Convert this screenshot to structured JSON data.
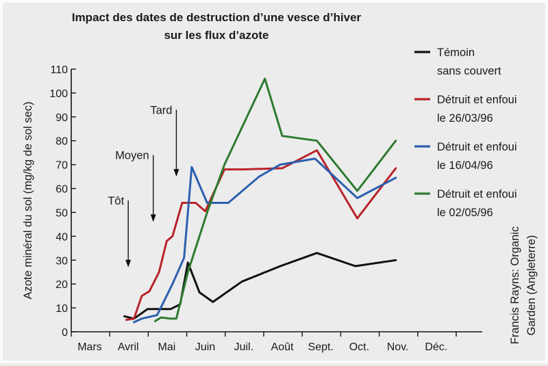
{
  "chart_data": {
    "type": "line",
    "title_line1": "Impact des dates de destruction d’une vesce d’hiver",
    "title_line2": "sur les flux d’azote",
    "ylabel": "Azote minéral du sol (mg/kg de sol sec)",
    "ylim": [
      0,
      110
    ],
    "yticks": [
      0,
      10,
      20,
      30,
      40,
      50,
      60,
      70,
      80,
      90,
      100,
      110
    ],
    "categories": [
      "Mars",
      "Avril",
      "Mai",
      "Juin",
      "Juil.",
      "Août",
      "Sept.",
      "Oct.",
      "Nov.",
      "Déc."
    ],
    "grid": false,
    "legend_position": "right",
    "series": [
      {
        "name": "Témoin sans couvert",
        "legend_lines": [
          "Témoin",
          "sans couvert"
        ],
        "color": "#111111",
        "x": [
          0.9,
          1.15,
          1.5,
          1.75,
          2.1,
          2.35,
          2.55,
          2.85,
          3.2,
          3.95,
          4.95,
          5.9,
          6.9,
          7.95
        ],
        "values": [
          6.5,
          5.5,
          9.5,
          9.5,
          9.5,
          11.5,
          29,
          16.5,
          12.5,
          21,
          27.5,
          33,
          27.5,
          30
        ]
      },
      {
        "name": "Détruit et enfoui le 26/03/96",
        "legend_lines": [
          "Détruit et enfoui",
          "le 26/03/96"
        ],
        "color": "#b8232a",
        "x": [
          0.95,
          1.15,
          1.35,
          1.55,
          1.8,
          2.0,
          2.15,
          2.4,
          2.75,
          3.0,
          3.5,
          4.0,
          5.0,
          5.9,
          6.95,
          7.95
        ],
        "values": [
          5,
          5.5,
          15,
          17,
          25,
          38,
          40,
          54,
          54,
          50.5,
          68,
          68,
          68.5,
          76,
          47.5,
          68.5
        ]
      },
      {
        "name": "Détruit et enfoui le 16/04/96",
        "legend_lines": [
          "Détruit et enfoui",
          "le 16/04/96"
        ],
        "color": "#2a5fae",
        "x": [
          1.15,
          1.35,
          1.75,
          2.15,
          2.45,
          2.65,
          3.05,
          3.6,
          4.4,
          4.95,
          5.85,
          6.95,
          7.95
        ],
        "values": [
          4,
          5.5,
          7,
          20,
          31,
          69,
          54,
          54,
          65,
          70,
          72.5,
          56,
          64.5
        ]
      },
      {
        "name": "Détruit et enfoui le 02/05/96",
        "legend_lines": [
          "Détruit et enfoui",
          "le 02/05/96"
        ],
        "color": "#2e7a30",
        "x": [
          1.7,
          1.85,
          2.1,
          2.25,
          2.55,
          3.05,
          3.5,
          4.55,
          5.0,
          5.9,
          6.95,
          7.95
        ],
        "values": [
          4.5,
          6,
          5.5,
          5.5,
          25,
          50,
          70,
          106,
          82,
          80,
          59,
          80
        ]
      }
    ],
    "annotations": [
      {
        "label": "Tôt",
        "x": 1.0,
        "from": 55,
        "to": 27
      },
      {
        "label": "Moyen",
        "x": 1.65,
        "from": 74,
        "to": 46
      },
      {
        "label": "Tard",
        "x": 2.25,
        "from": 93,
        "to": 65
      }
    ],
    "source": [
      "Francis Rayns: Organic",
      "Garden (Angleterre)"
    ]
  }
}
